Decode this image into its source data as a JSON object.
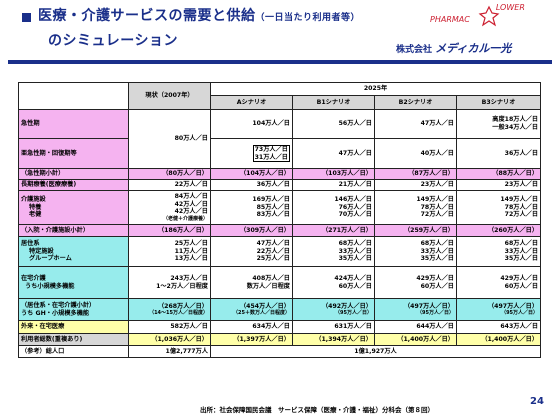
{
  "header": {
    "title_line1": "医療・介護サービスの需要と供給",
    "title_paren": "（一日当たり利用者等）",
    "title_line2": "のシミュレーション",
    "logo_text": "PHARMAC",
    "logo_text2": "LOWER",
    "company_prefix": "株式会社",
    "company_name": "メディカル一光",
    "colors": {
      "title": "#1a2f8a",
      "logo": "#cc1e2f"
    }
  },
  "table": {
    "col_current": "現状（2007年）",
    "col_year": "2025年",
    "scenarios": [
      "Aシナリオ",
      "B1シナリオ",
      "B2シナリオ",
      "B3シナリオ"
    ],
    "acute_label": "急性期",
    "subacute_label": "亜急性期・回復期等",
    "acute_current": "80万人／日",
    "acute_a": "104万人／日",
    "acute_b1": "56万人／日",
    "acute_b2": "47万人／日",
    "acute_b3_line1": "高度18万人／日",
    "acute_b3_line2": "一般34万人／日",
    "subacute_a_box1": "73万人／日",
    "subacute_a_box2": "31万人／日",
    "subacute_b1": "47万人／日",
    "subacute_b2": "40万人／日",
    "subacute_b3": "36万人／日",
    "acute_sub_label": "（急性期小計）",
    "acute_sub": [
      "（80万人／日）",
      "（104万人／日）",
      "（103万人／日）",
      "（87万人／日）",
      "（88万人／日）"
    ],
    "longterm_label": "長期療養(医療療養)",
    "longterm": [
      "22万人／日",
      "36万人／日",
      "21万人／日",
      "23万人／日",
      "23万人／日"
    ],
    "care_label": "介護施設",
    "care_sub1": "特養",
    "care_sub2": "老健",
    "care_note": "（老健＋介護療養）",
    "care_total": [
      "84万人／日",
      "169万人／日",
      "146万人／日",
      "149万人／日",
      "149万人／日"
    ],
    "care_tokuyo": [
      "42万人／日",
      "85万人／日",
      "76万人／日",
      "78万人／日",
      "78万人／日"
    ],
    "care_roken": [
      "42万人／日",
      "83万人／日",
      "70万人／日",
      "72万人／日",
      "72万人／日"
    ],
    "inpatient_label": "（入院・介護施設小計）",
    "inpatient_sub": [
      "（186万人／日）",
      "（309万人／日）",
      "（271万人／日）",
      "（259万人／日）",
      "（260万人／日）"
    ],
    "residential_label": "居住系",
    "residential_sub1": "特定施設",
    "residential_sub2": "グループホーム",
    "residential_total": [
      "25万人／日",
      "47万人／日",
      "68万人／日",
      "68万人／日",
      "68万人／日"
    ],
    "residential_tokutei": [
      "11万人／日",
      "22万人／日",
      "33万人／日",
      "33万人／日",
      "33万人／日"
    ],
    "residential_gh": [
      "13万人／日",
      "25万人／日",
      "35万人／日",
      "35万人／日",
      "35万人／日"
    ],
    "home_label": "在宅介護",
    "home_sub": "うち小規模多機能",
    "home_total": [
      "243万人／日",
      "408万人／日",
      "424万人／日",
      "429万人／日",
      "429万人／日"
    ],
    "home_small": [
      "1～2万人／日程度",
      "数万人／日程度",
      "60万人／日",
      "60万人／日",
      "60万人／日"
    ],
    "res_home_label1": "（居住系・在宅介護小計）",
    "res_home_label2": "うち GH・小規模多機能",
    "res_home_total": [
      "（268万人／日）",
      "（454万人／日）",
      "（492万人／日）",
      "（497万人／日）",
      "（497万人／日）"
    ],
    "res_home_small": [
      "（14～15万人／日程度）",
      "（25＋数万人／日程度）",
      "（95万人／日）",
      "（95万人／日）",
      "（95万人／日）"
    ],
    "outpatient_label": "外来・在宅医療",
    "outpatient": [
      "582万人／日",
      "634万人／日",
      "631万人／日",
      "644万人／日",
      "643万人／日"
    ],
    "users_label": "利用者総数(重複あり)",
    "users": [
      "（1,036万人／日）",
      "（1,397万人／日）",
      "（1,394万人／日）",
      "（1,400万人／日）",
      "（1,400万人／日）"
    ],
    "population_label": "（参考）総人口",
    "population_current": "1億2,777万人",
    "population_2025": "1億1,927万人"
  },
  "footer": {
    "source": "出所：社会保障国民会議　サービス保障（医療・介護・福祉）分科会（第８回）",
    "page": "24"
  }
}
